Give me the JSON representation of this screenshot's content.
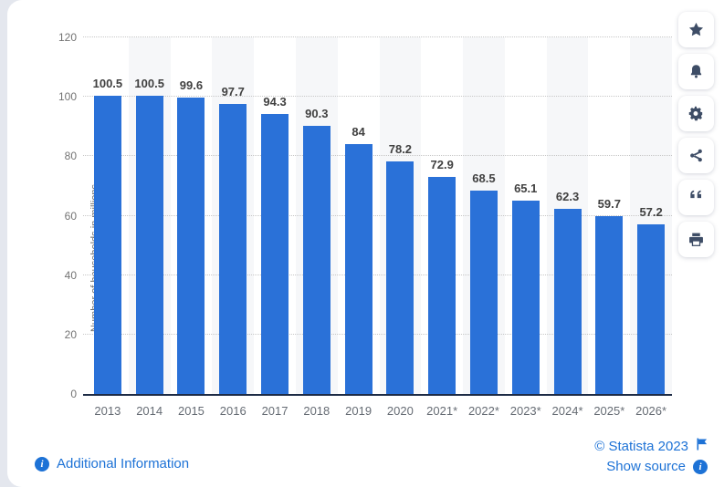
{
  "chart_data": {
    "type": "bar",
    "categories": [
      "2013",
      "2014",
      "2015",
      "2016",
      "2017",
      "2018",
      "2019",
      "2020",
      "2021*",
      "2022*",
      "2023*",
      "2024*",
      "2025*",
      "2026*"
    ],
    "values": [
      100.5,
      100.5,
      99.6,
      97.7,
      94.3,
      90.3,
      84,
      78.2,
      72.9,
      68.5,
      65.1,
      62.3,
      59.7,
      57.2
    ],
    "value_labels": [
      "100.5",
      "100.5",
      "99.6",
      "97.7",
      "94.3",
      "90.3",
      "84",
      "78.2",
      "72.9",
      "68.5",
      "65.1",
      "62.3",
      "59.7",
      "57.2"
    ],
    "title": "",
    "xlabel": "",
    "ylabel": "Number of households in millions",
    "ylim": [
      0,
      120
    ],
    "yticks": [
      0,
      20,
      40,
      60,
      80,
      100,
      120
    ],
    "grid": "horizontal-dotted",
    "legend": "none",
    "bar_color": "#2a71d8",
    "stripe_color": "#f6f7f9"
  },
  "toolbar": {
    "buttons": [
      {
        "icon": "star-icon"
      },
      {
        "icon": "bell-icon"
      },
      {
        "icon": "gear-icon"
      },
      {
        "icon": "share-icon"
      },
      {
        "icon": "quote-icon"
      },
      {
        "icon": "printer-icon"
      }
    ]
  },
  "footer": {
    "additional_info_label": "Additional Information",
    "copyright": "© Statista 2023",
    "show_source_label": "Show source"
  },
  "colors": {
    "bar_blue": "#2a71d8",
    "link_blue": "#1d72d6",
    "icon_navy": "#3e4d66",
    "axis_dark": "#1d2b45"
  }
}
